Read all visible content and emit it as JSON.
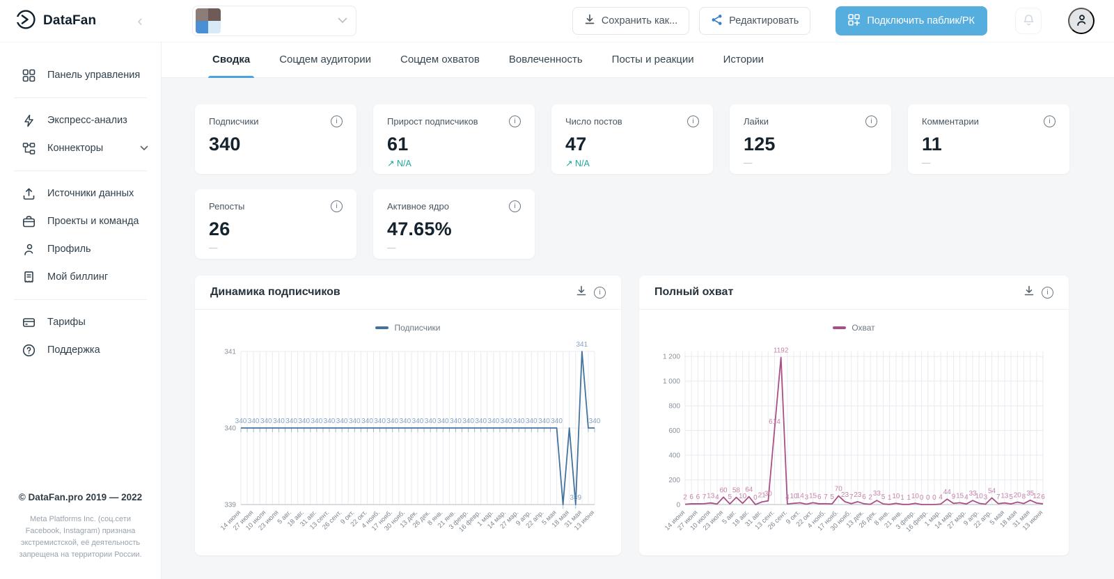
{
  "brand": {
    "name": "DataFan"
  },
  "colors": {
    "accent_blue": "#4aa3df",
    "button_blue": "#55aede",
    "trend_teal": "#1fa79b",
    "chart1_line": "#42729e",
    "chart2_line": "#a94f85"
  },
  "icons": {
    "trend_up": "↗",
    "collapse_chevron": "‹",
    "dash": "—"
  },
  "topbar": {
    "save_as_label": "Сохранить как...",
    "edit_label": "Редактировать",
    "connect_label": "Подключить паблик/РК"
  },
  "sidebar": {
    "items": [
      {
        "label": "Панель управления"
      },
      {
        "label": "Экспресс-анализ"
      },
      {
        "label": "Коннекторы"
      },
      {
        "label": "Источники данных"
      },
      {
        "label": "Проекты и команда"
      },
      {
        "label": "Профиль"
      },
      {
        "label": "Мой биллинг"
      },
      {
        "label": "Тарифы"
      },
      {
        "label": "Поддержка"
      }
    ],
    "footer_copyright": "© DataFan.pro 2019 — 2022",
    "footer_disclaimer": "Meta Platforms Inc. (соц.сети Facebook, Instagram) признана экстремистской, её деятельность запрещена на территории России."
  },
  "tabs": {
    "active_index": 0,
    "items": [
      "Сводка",
      "Соцдем аудитории",
      "Соцдем охватов",
      "Вовлеченность",
      "Посты и реакции",
      "Истории"
    ]
  },
  "stat_cards": [
    {
      "label": "Подписчики",
      "value": "340",
      "sub": "",
      "sub_type": "none"
    },
    {
      "label": "Прирост подписчиков",
      "value": "61",
      "sub": "N/A",
      "sub_type": "trend"
    },
    {
      "label": "Число постов",
      "value": "47",
      "sub": "N/A",
      "sub_type": "trend"
    },
    {
      "label": "Лайки",
      "value": "125",
      "sub": "—",
      "sub_type": "dash"
    },
    {
      "label": "Комментарии",
      "value": "11",
      "sub": "—",
      "sub_type": "dash"
    },
    {
      "label": "Репосты",
      "value": "26",
      "sub": "—",
      "sub_type": "dash"
    },
    {
      "label": "Активное ядро",
      "value": "47.65%",
      "sub": "—",
      "sub_type": "dash"
    }
  ],
  "chart_data": [
    {
      "type": "line",
      "title": "Динамика подписчиков",
      "legend": "Подписчики",
      "color": "#42729e",
      "label_color": "#87a3c2",
      "grid": true,
      "legend_position": "top",
      "point_ticks": true,
      "xlabel": "",
      "ylabel": "",
      "ylim": [
        339,
        341
      ],
      "yticks": [
        {
          "v": 339,
          "label": "339"
        },
        {
          "v": 340,
          "label": "340"
        },
        {
          "v": 341,
          "label": "341"
        }
      ],
      "x": [
        "14 июня",
        "27 июня",
        "10 июля",
        "23 июля",
        "5 авг.",
        "18 авг.",
        "31 авг.",
        "13 сент.",
        "26 сент.",
        "9 окт.",
        "22 окт.",
        "4 нояб.",
        "17 нояб.",
        "30 нояб.",
        "13 дек.",
        "26 дек.",
        "8 янв.",
        "21 янв.",
        "3 февр.",
        "16 февр.",
        "1 мар.",
        "14 мар.",
        "27 мар.",
        "9 апр.",
        "22 апр.",
        "5 мая",
        "18 мая",
        "31 мая",
        "13 июня"
      ],
      "values": [
        340,
        340,
        340,
        340,
        340,
        340,
        340,
        340,
        340,
        340,
        340,
        340,
        340,
        340,
        340,
        340,
        340,
        340,
        340,
        340,
        340,
        340,
        340,
        340,
        340,
        340,
        340,
        340,
        340,
        340,
        340,
        340,
        340,
        340,
        340,
        340,
        340,
        340,
        340,
        340,
        340,
        340,
        340,
        340,
        340,
        340,
        340,
        340,
        340,
        340,
        340,
        339,
        340,
        339,
        341,
        340,
        340
      ],
      "point_labels": [
        "340",
        "",
        "340",
        "",
        "340",
        "",
        "340",
        "",
        "340",
        "",
        "340",
        "",
        "340",
        "",
        "340",
        "",
        "340",
        "",
        "340",
        "",
        "340",
        "",
        "340",
        "",
        "340",
        "",
        "340",
        "",
        "340",
        "",
        "340",
        "",
        "340",
        "",
        "340",
        "",
        "340",
        "",
        "340",
        "",
        "340",
        "",
        "340",
        "",
        "340",
        "",
        "340",
        "",
        "340",
        "",
        "340",
        "",
        "",
        "339",
        "341",
        "",
        "340"
      ]
    },
    {
      "type": "line",
      "title": "Полный охват",
      "legend": "Охват",
      "color": "#a94f85",
      "label_color": "#c584a9",
      "grid": true,
      "legend_position": "top",
      "point_ticks": false,
      "xlabel": "",
      "ylabel": "",
      "ylim": [
        0,
        1240
      ],
      "yticks": [
        {
          "v": 0,
          "label": "0"
        },
        {
          "v": 200,
          "label": "200"
        },
        {
          "v": 400,
          "label": "400"
        },
        {
          "v": 600,
          "label": "600"
        },
        {
          "v": 800,
          "label": "800"
        },
        {
          "v": 1000,
          "label": "1 000"
        },
        {
          "v": 1200,
          "label": "1 200"
        }
      ],
      "x": [
        "14 июня",
        "27 июня",
        "10 июля",
        "23 июля",
        "5 авг.",
        "18 авг.",
        "31 авг.",
        "13 сент.",
        "26 сент.",
        "9 окт.",
        "22 окт.",
        "4 нояб.",
        "17 нояб.",
        "30 нояб.",
        "13 дек.",
        "26 дек.",
        "8 янв.",
        "21 янв.",
        "3 февр.",
        "16 февр.",
        "1 мар.",
        "14 мар.",
        "27 мар.",
        "9 апр.",
        "22 апр.",
        "5 мая",
        "18 мая",
        "31 мая",
        "13 июня"
      ],
      "values": [
        2,
        6,
        6,
        7,
        13,
        4,
        60,
        5,
        58,
        10,
        64,
        0,
        21,
        30,
        614,
        1192,
        4,
        10,
        14,
        3,
        15,
        6,
        7,
        5,
        70,
        23,
        7,
        23,
        6,
        2,
        33,
        5,
        1,
        10,
        1,
        1,
        10,
        0,
        0,
        0,
        4,
        44,
        9,
        15,
        4,
        33,
        10,
        3,
        54,
        7,
        13,
        5,
        20,
        8,
        35,
        12,
        6
      ],
      "point_labels": [
        "2",
        "6",
        "6",
        "7",
        "13",
        "4",
        "60",
        "5",
        "58",
        "10",
        "64",
        "0",
        "21",
        "30",
        "614",
        "1192",
        "4",
        "10",
        "14",
        "3",
        "15",
        "6",
        "7",
        "5",
        "70",
        "23",
        "7",
        "23",
        "6",
        "2",
        "33",
        "5",
        "1",
        "10",
        "1",
        "1",
        "10",
        "0",
        "0",
        "0",
        "4",
        "44",
        "9",
        "15",
        "4",
        "33",
        "10",
        "3",
        "54",
        "7",
        "13",
        "5",
        "20",
        "8",
        "35",
        "12",
        "6"
      ]
    }
  ]
}
